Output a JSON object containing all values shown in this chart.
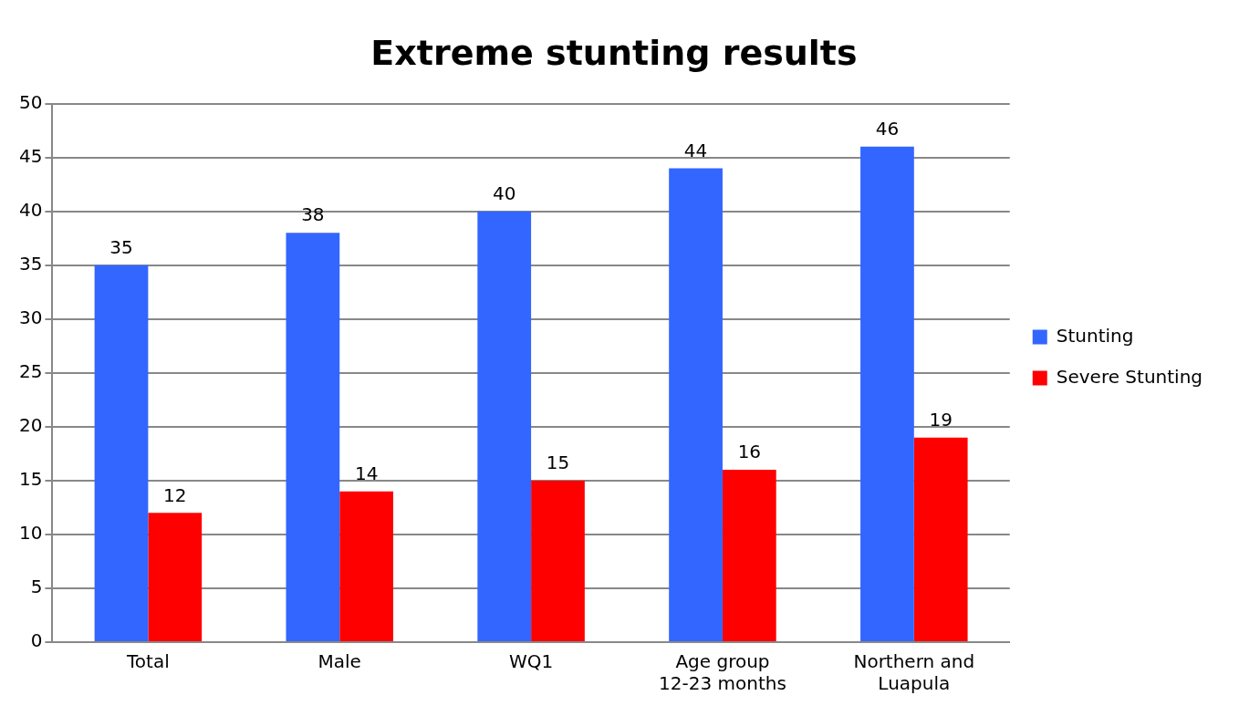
{
  "chart_data": {
    "type": "bar",
    "title": "Extreme stunting results",
    "categories": [
      "Total",
      "Male",
      "WQ1",
      "Age group 12-23 months",
      "Northern and Luapula"
    ],
    "series": [
      {
        "name": "Stunting",
        "color": "#3366ff",
        "values": [
          35,
          38,
          40,
          44,
          46
        ]
      },
      {
        "name": "Severe Stunting",
        "color": "#ff0000",
        "values": [
          12,
          14,
          15,
          16,
          19
        ]
      }
    ],
    "ylim": [
      0,
      50
    ],
    "yticks": [
      0,
      5,
      10,
      15,
      20,
      25,
      30,
      35,
      40,
      45,
      50
    ],
    "grid": "y",
    "legend": "right",
    "data_labels": true
  }
}
